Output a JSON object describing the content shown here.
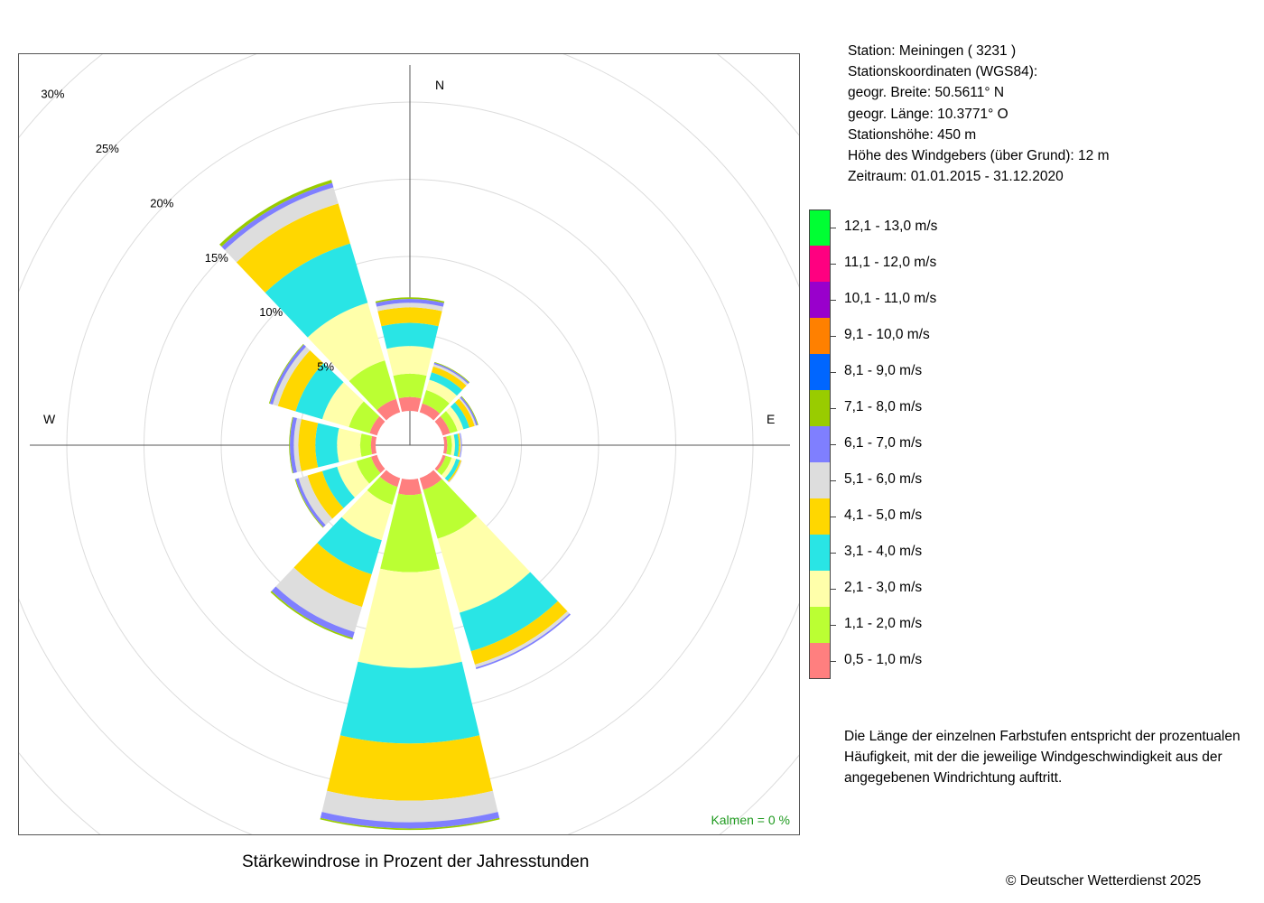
{
  "station_info": {
    "line1": "Station:  Meiningen  ( 3231 )",
    "line2": "Stationskoordinaten (WGS84):",
    "line3": "geogr. Breite: 50.5611° N",
    "line4": "geogr. Länge: 10.3771° O",
    "line5": "Stationshöhe: 450 m",
    "line6": "Höhe des Windgebers (über Grund): 12 m",
    "line7": "Zeitraum: 01.01.2015 - 31.12.2020"
  },
  "legend_note": "Die Länge der einzelnen Farbstufen entspricht der prozentualen Häufigkeit, mit der die jeweilige Windgeschwindigkeit aus der angegebenen Windrichtung auftritt.",
  "copyright": "© Deutscher Wetterdienst  2025",
  "chart_data": {
    "type": "wind-rose",
    "title": "Stärkewindrose in Prozent der Jahresstunden",
    "calm_label": "Kalmen  =  0 %",
    "compass_labels": {
      "N": "N",
      "E": "E",
      "W": "W"
    },
    "ring_labels": [
      "5%",
      "10%",
      "15%",
      "20%",
      "25%",
      "30%"
    ],
    "rings_percent": [
      5,
      10,
      15,
      20,
      25,
      30
    ],
    "grid": true,
    "direction_angles_deg": [
      0,
      30,
      60,
      90,
      120,
      150,
      180,
      210,
      240,
      270,
      300,
      330
    ],
    "bins": [
      {
        "label": "0,5 - 1,0 m/s",
        "color": "#ff7f7f"
      },
      {
        "label": "1,1 - 2,0 m/s",
        "color": "#bbff33"
      },
      {
        "label": "2,1 - 3,0 m/s",
        "color": "#ffffaa"
      },
      {
        "label": "3,1 - 4,0 m/s",
        "color": "#29e5e5"
      },
      {
        "label": "4,1 - 5,0 m/s",
        "color": "#ffd700"
      },
      {
        "label": "5,1 - 6,0 m/s",
        "color": "#dddddd"
      },
      {
        "label": "6,1 - 7,0 m/s",
        "color": "#7f7fff"
      },
      {
        "label": "7,1 - 8,0 m/s",
        "color": "#99cc00"
      },
      {
        "label": "8,1 - 9,0 m/s",
        "color": "#0066ff"
      },
      {
        "label": "9,1 - 10,0 m/s",
        "color": "#ff8000"
      },
      {
        "label": "10,1 - 11,0 m/s",
        "color": "#9900cc"
      },
      {
        "label": "11,1 - 12,0 m/s",
        "color": "#ff0080"
      },
      {
        "label": "12,1 - 13,0 m/s",
        "color": "#00ff33"
      }
    ],
    "directions": [
      {
        "dir_deg": 0,
        "values": [
          0.9,
          1.5,
          1.8,
          1.5,
          1.0,
          0.3,
          0.25,
          0.1
        ]
      },
      {
        "dir_deg": 30,
        "values": [
          0.6,
          0.9,
          0.7,
          0.5,
          0.4,
          0.15,
          0.1,
          0.05
        ]
      },
      {
        "dir_deg": 60,
        "values": [
          0.5,
          0.5,
          0.4,
          0.4,
          0.35,
          0.1,
          0.1,
          0.05
        ]
      },
      {
        "dir_deg": 90,
        "values": [
          0.2,
          0.3,
          0.2,
          0.25,
          0.1,
          0.05,
          0.05
        ]
      },
      {
        "dir_deg": 120,
        "values": [
          0.2,
          0.4,
          0.3,
          0.25,
          0.1,
          0.05
        ]
      },
      {
        "dir_deg": 150,
        "values": [
          0.8,
          3.3,
          5.0,
          2.6,
          0.9,
          0.2,
          0.1
        ]
      },
      {
        "dir_deg": 180,
        "values": [
          1.0,
          5.0,
          6.2,
          4.9,
          3.7,
          1.4,
          0.4,
          0.1
        ]
      },
      {
        "dir_deg": 210,
        "values": [
          0.6,
          1.2,
          2.4,
          2.3,
          2.2,
          1.7,
          0.4,
          0.1
        ]
      },
      {
        "dir_deg": 240,
        "values": [
          0.4,
          1.0,
          1.3,
          1.0,
          1.0,
          0.6,
          0.2,
          0.05
        ]
      },
      {
        "dir_deg": 270,
        "values": [
          0.3,
          0.7,
          1.5,
          1.4,
          1.1,
          0.3,
          0.25,
          0.05
        ]
      },
      {
        "dir_deg": 300,
        "values": [
          0.5,
          1.4,
          1.8,
          1.8,
          1.2,
          0.35,
          0.2,
          0.05
        ]
      },
      {
        "dir_deg": 330,
        "values": [
          0.9,
          2.6,
          3.9,
          4.0,
          2.7,
          1.1,
          0.3,
          0.2
        ]
      }
    ]
  }
}
